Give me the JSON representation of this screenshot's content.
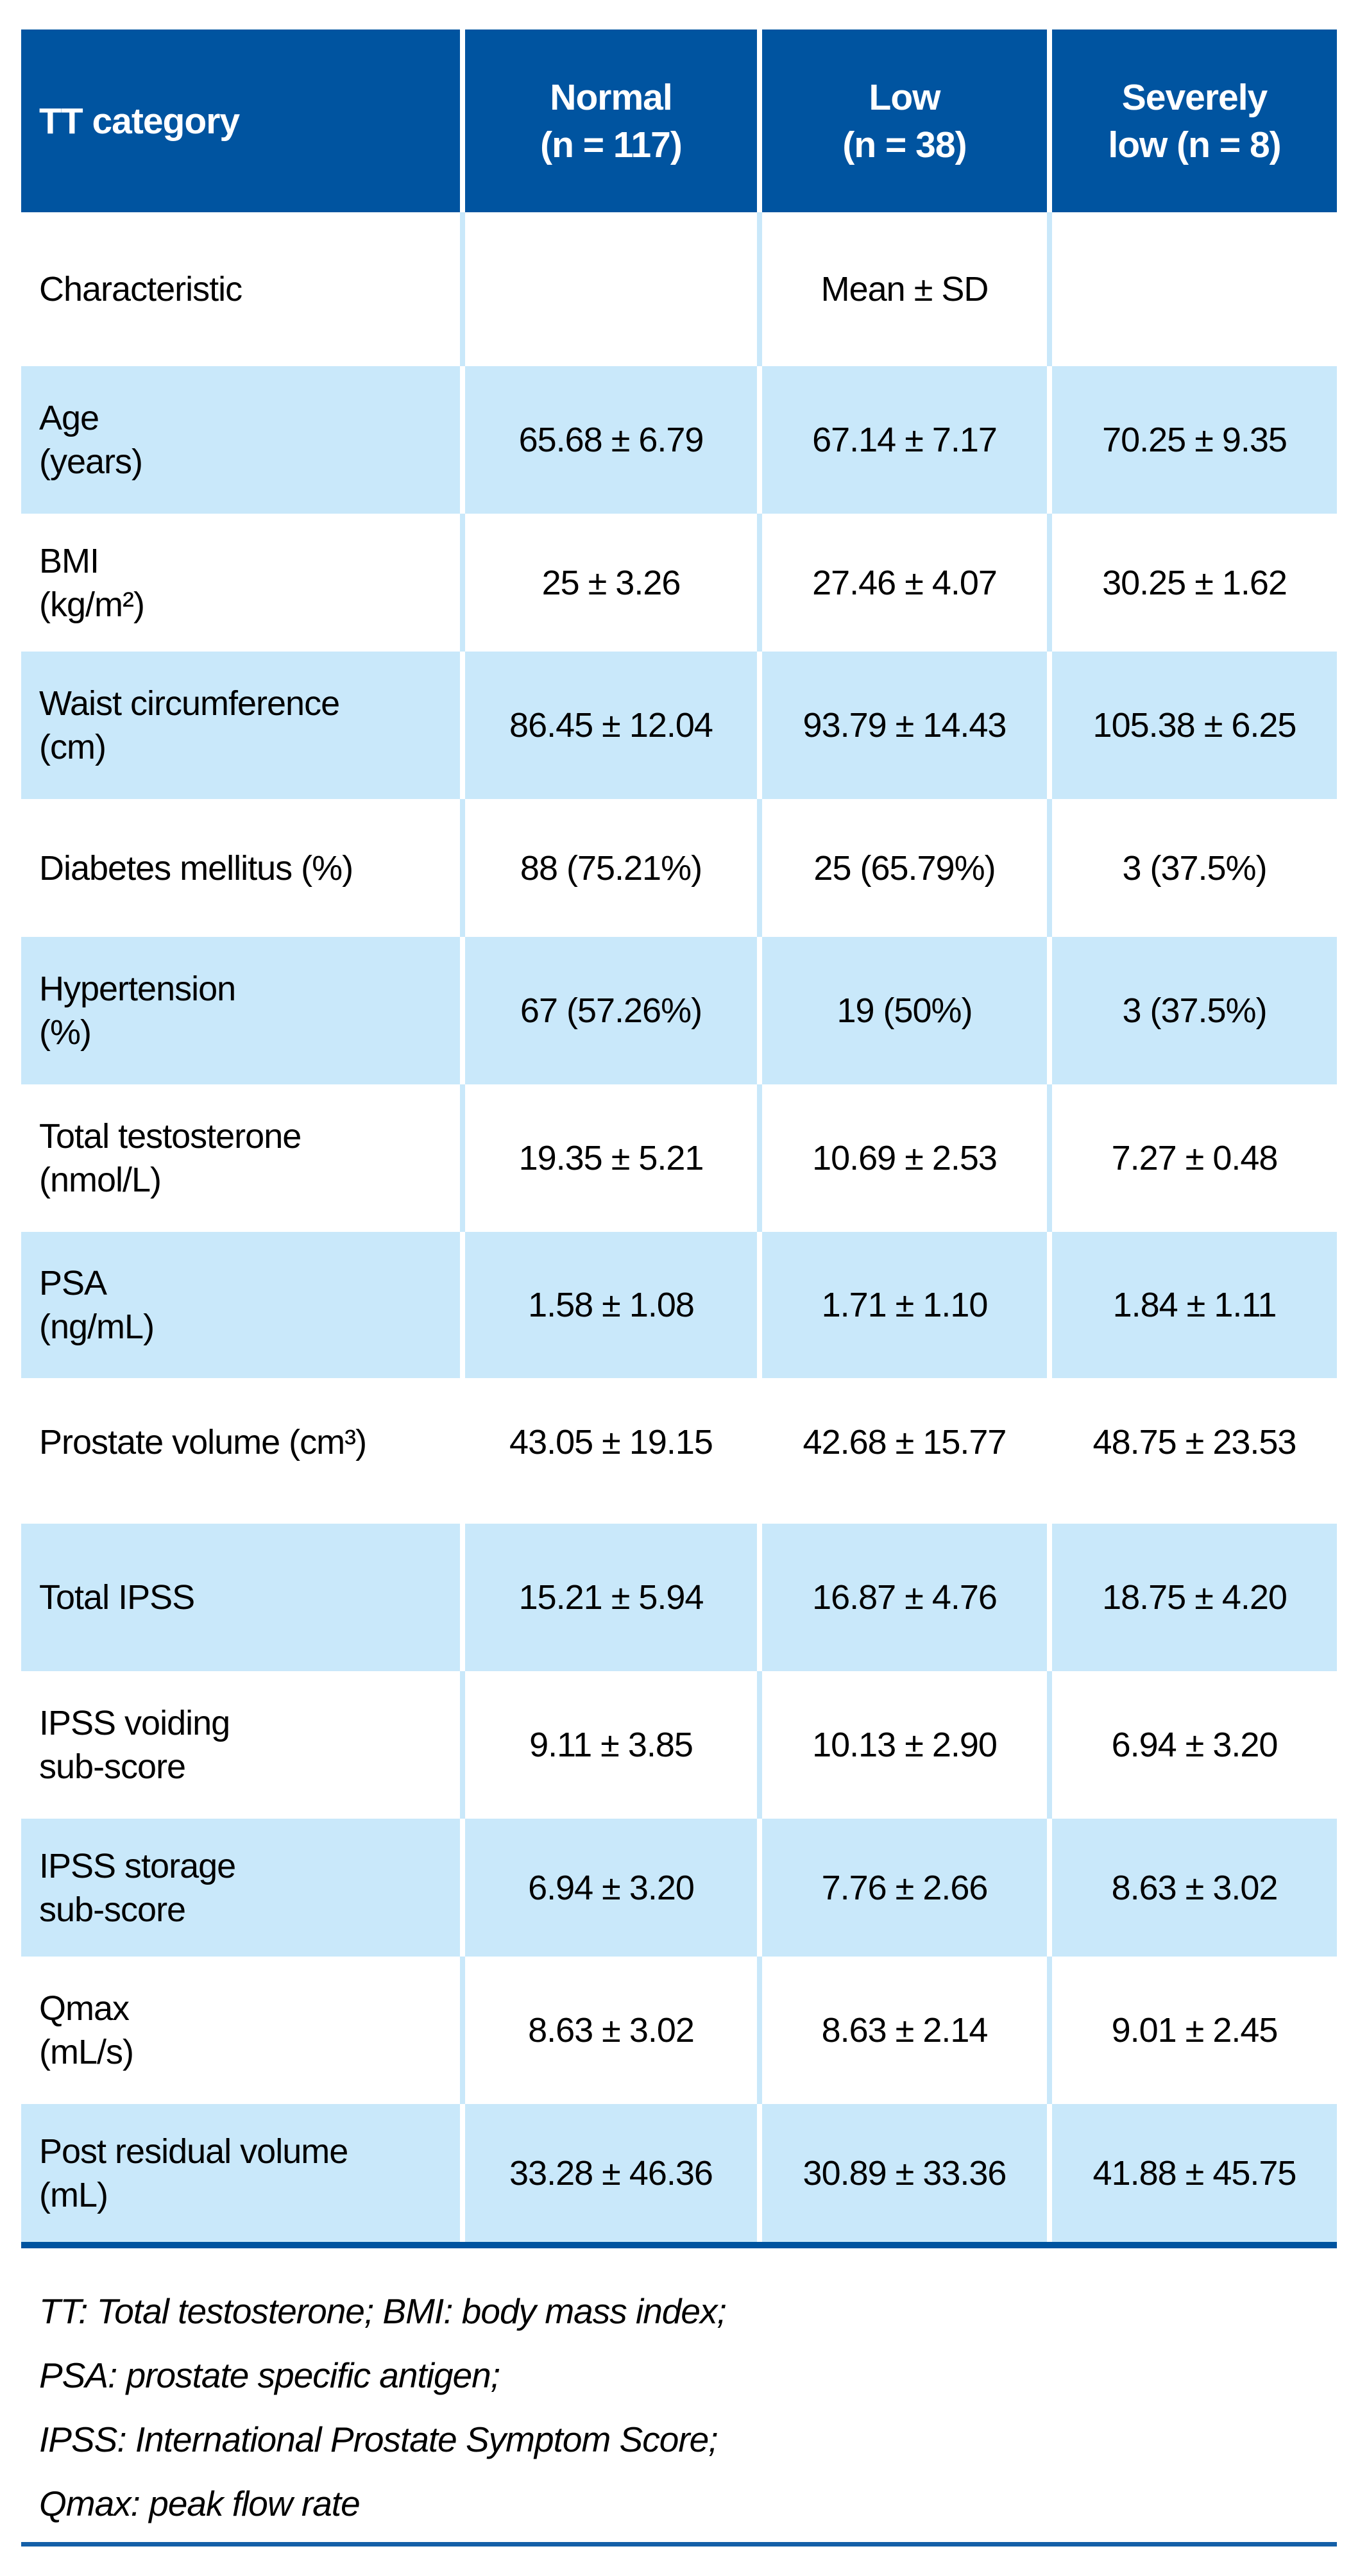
{
  "colors": {
    "header_bg": "#0054A0",
    "row_light_blue": "#C9E8FA",
    "table_bottom_bar": "#0054A0",
    "footer_bottom_rule": "#1460A8",
    "header_text": "#FFFFFF",
    "body_text": "#000000"
  },
  "table": {
    "header": {
      "col1": "TT category",
      "col2_l1": "Normal",
      "col2_l2": "(n = 117)",
      "col3_l1": "Low",
      "col3_l2": "(n = 38)",
      "col4_l1": "Severely",
      "col4_l2": "low (n = 8)"
    },
    "subheader": {
      "label": "Characteristic",
      "stat": "Mean ± SD"
    },
    "rows": [
      {
        "label": "Age",
        "sublabel": "(years)",
        "v1": "65.68 ± 6.79",
        "v2": "67.14 ± 7.17",
        "v3": "70.25 ± 9.35"
      },
      {
        "label": "BMI",
        "sublabel": "(kg/m²)",
        "v1": "25 ± 3.26",
        "v2": "27.46 ± 4.07",
        "v3": "30.25 ± 1.62"
      },
      {
        "label": "Waist circumference",
        "sublabel": "(cm)",
        "v1": "86.45 ± 12.04",
        "v2": "93.79 ± 14.43",
        "v3": "105.38 ± 6.25"
      },
      {
        "label": "Diabetes mellitus (%)",
        "sublabel": "",
        "v1": "88 (75.21%)",
        "v2": "25 (65.79%)",
        "v3": "3 (37.5%)"
      },
      {
        "label": "Hypertension",
        "sublabel": "(%)",
        "v1": "67 (57.26%)",
        "v2": "19 (50%)",
        "v3": "3 (37.5%)"
      },
      {
        "label": "Total testosterone",
        "sublabel": "(nmol/L)",
        "v1": "19.35 ± 5.21",
        "v2": "10.69 ± 2.53",
        "v3": "7.27 ± 0.48"
      },
      {
        "label": "PSA",
        "sublabel": "(ng/mL)",
        "v1": "1.58 ± 1.08",
        "v2": "1.71 ± 1.10",
        "v3": "1.84 ± 1.11"
      },
      {
        "label": "Prostate volume (cm³)",
        "sublabel": "",
        "v1": "43.05 ± 19.15",
        "v2": "42.68 ± 15.77",
        "v3": "48.75 ± 23.53"
      },
      {
        "label": "Total IPSS",
        "sublabel": "",
        "v1": "15.21 ± 5.94",
        "v2": "16.87 ± 4.76",
        "v3": "18.75 ± 4.20"
      },
      {
        "label": "IPSS voiding",
        "sublabel": "sub-score",
        "v1": "9.11 ± 3.85",
        "v2": "10.13 ± 2.90",
        "v3": "6.94 ± 3.20"
      },
      {
        "label": "IPSS storage",
        "sublabel": "sub-score",
        "v1": "6.94 ± 3.20",
        "v2": "7.76 ± 2.66",
        "v3": "8.63 ± 3.02"
      },
      {
        "label": "Qmax",
        "sublabel": "(mL/s)",
        "v1": "8.63 ± 3.02",
        "v2": "8.63 ± 2.14",
        "v3": "9.01 ± 2.45"
      },
      {
        "label": "Post residual volume",
        "sublabel": "(mL)",
        "v1": "33.28 ± 46.36",
        "v2": "30.89 ± 33.36",
        "v3": "41.88 ± 45.75"
      }
    ]
  },
  "footnotes": [
    "TT: Total testosterone; BMI: body mass index;",
    "PSA: prostate specific antigen;",
    "IPSS: International Prostate Symptom Score;",
    "Qmax: peak flow rate"
  ]
}
